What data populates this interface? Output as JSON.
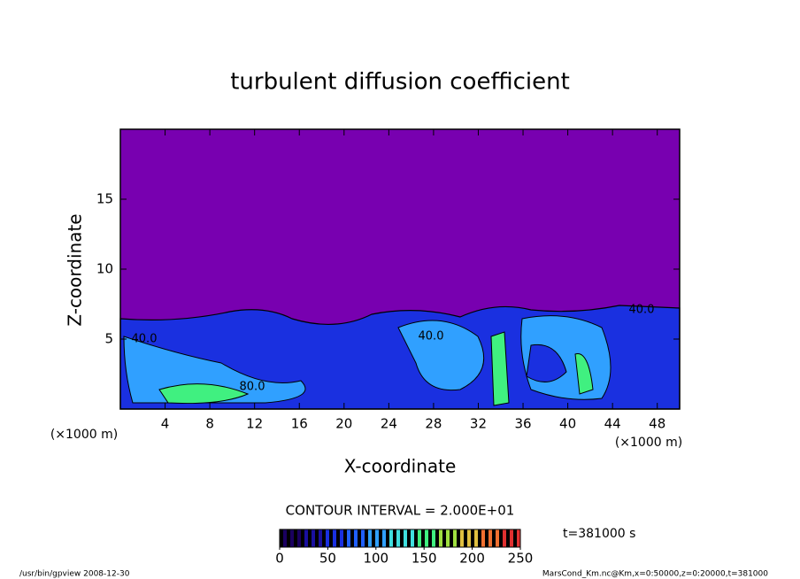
{
  "chart_data": {
    "type": "contour",
    "title": "turbulent diffusion coefficient",
    "x_label": "X-coordinate",
    "y_label": "Z-coordinate",
    "x_unit": "(×1000 m)",
    "y_unit": "(×1000 m)",
    "xlim": [
      0,
      50
    ],
    "xticks": [
      4,
      8,
      12,
      16,
      20,
      24,
      28,
      32,
      36,
      40,
      44,
      48
    ],
    "ylim": [
      0,
      20
    ],
    "yticks": [
      5,
      10,
      15
    ],
    "contour_interval_text": "CONTOUR INTERVAL = 2.000E+01",
    "contour_labels": [
      {
        "value": 40,
        "label": "40.0"
      },
      {
        "value": 80,
        "label": "80.0"
      },
      {
        "value": 40,
        "label": "40.0"
      },
      {
        "value": 40,
        "label": "40.0"
      }
    ],
    "colorbar": {
      "lim": [
        0,
        250
      ],
      "ticks": [
        0,
        50,
        100,
        150,
        200,
        250
      ],
      "colors": [
        "#1a0060",
        "#1a10a0",
        "#1a30e0",
        "#2060ff",
        "#30a0ff",
        "#40e0e0",
        "#40f080",
        "#a0e040",
        "#e0c040",
        "#f07030",
        "#e03030"
      ]
    },
    "time_text": "t=381000 s",
    "footer_left": "/usr/bin/gpview   2008-12-30",
    "footer_right": "MarsCond_Km.nc@Km,x=0:50000,z=0:20000,t=381000"
  }
}
